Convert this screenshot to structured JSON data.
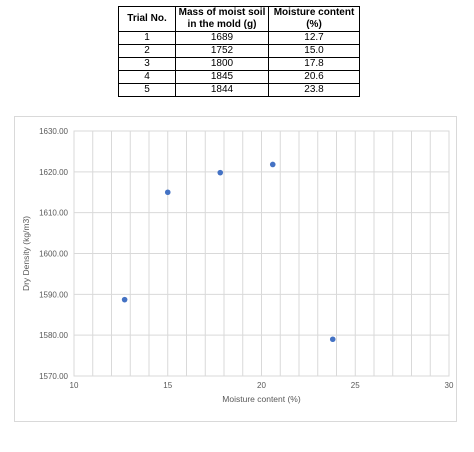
{
  "table": {
    "headers": [
      "Trial No.",
      "Mass of moist soil in the mold (g)",
      "Moisture content (%)"
    ],
    "header_lines": [
      [
        "Trial No."
      ],
      [
        "Mass of moist soil",
        "in the mold (g)"
      ],
      [
        "Moisture content",
        "(%)"
      ]
    ],
    "rows": [
      [
        "1",
        "1689",
        "12.7"
      ],
      [
        "2",
        "1752",
        "15.0"
      ],
      [
        "3",
        "1800",
        "17.8"
      ],
      [
        "4",
        "1845",
        "20.6"
      ],
      [
        "5",
        "1844",
        "23.8"
      ]
    ]
  },
  "chart_data": {
    "type": "scatter",
    "title": "",
    "xlabel": "Moisture content (%)",
    "ylabel": "Dry Density (kg/m3)",
    "xlim": [
      10,
      30
    ],
    "ylim": [
      1570,
      1630
    ],
    "x_ticks": [
      10,
      15,
      20,
      25,
      30
    ],
    "x_tick_labels": [
      "10",
      "15",
      "20",
      "25",
      "30"
    ],
    "y_ticks": [
      1570,
      1580,
      1590,
      1600,
      1610,
      1620,
      1630
    ],
    "y_tick_labels": [
      "1570.00",
      "1580.00",
      "1590.00",
      "1600.00",
      "1610.00",
      "1620.00",
      "1630.00"
    ],
    "grid": true,
    "legend": "none",
    "marker_color": "#4472c4",
    "grid_color": "#d9d9d9",
    "points": [
      {
        "x": 12.7,
        "y": 1588.7
      },
      {
        "x": 15.0,
        "y": 1615.0
      },
      {
        "x": 17.8,
        "y": 1619.8
      },
      {
        "x": 20.6,
        "y": 1621.8
      },
      {
        "x": 23.8,
        "y": 1579.0
      }
    ]
  }
}
